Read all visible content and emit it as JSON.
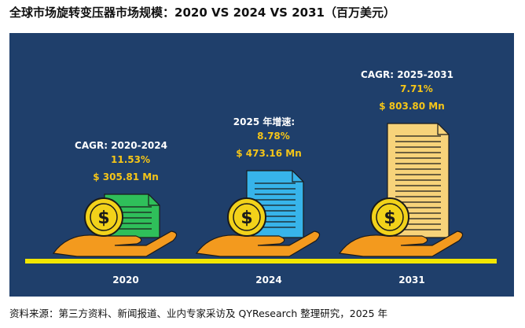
{
  "title": "全球市场旋转变压器市场规模：2020 VS 2024 VS 2031（百万美元）",
  "source": "资料来源：第三方资料、新闻报道、业内专家采访及 QYResearch 整理研究，2025 年",
  "colors": {
    "background": "#1f3f6b",
    "baseline": "#f2e600",
    "value_text": "#f5c518",
    "label_text": "#ffffff",
    "hand": "#f39a1e",
    "coin": "#f2d21a",
    "doc_2020": "#2fbf5a",
    "doc_2024": "#37b4ea",
    "doc_2031": "#f7d37a"
  },
  "chart_data": {
    "type": "bar",
    "categories": [
      "2020",
      "2024",
      "2031"
    ],
    "values": [
      305.81,
      473.16,
      803.8
    ],
    "value_labels": [
      "$ 305.81 Mn",
      "$ 473.16 Mn",
      "$ 803.80 Mn"
    ],
    "unit": "Mn",
    "growth_notes": [
      {
        "label": "CAGR: 2020-2024",
        "value": "11.53%"
      },
      {
        "label": "2025 年增速:",
        "value": "8.78%"
      },
      {
        "label": "CAGR: 2025-2031",
        "value": "7.71%"
      }
    ],
    "icons": [
      "money-hand-icon",
      "document-icon",
      "dollar-coin-icon"
    ]
  }
}
